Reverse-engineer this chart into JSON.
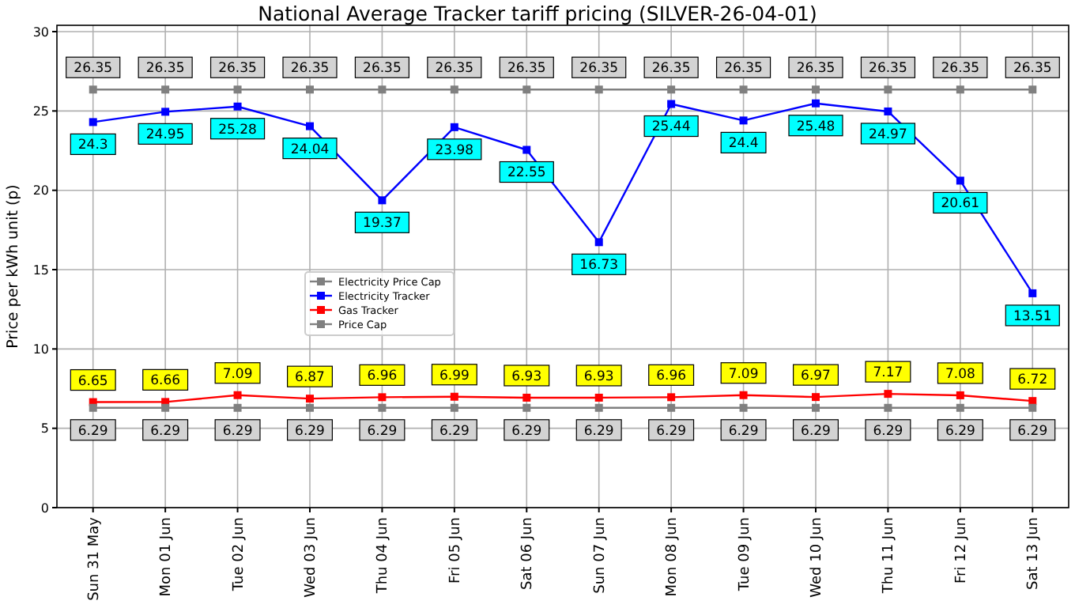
{
  "chart_data": {
    "type": "line",
    "title": "National Average Tracker tariff pricing (SILVER-26-04-01)",
    "ylabel": "Price per kWh unit (p)",
    "categories": [
      "Sun 31 May",
      "Mon 01 Jun",
      "Tue 02 Jun",
      "Wed 03 Jun",
      "Thu 04 Jun",
      "Fri 05 Jun",
      "Sat 06 Jun",
      "Sun 07 Jun",
      "Mon 08 Jun",
      "Tue 09 Jun",
      "Wed 10 Jun",
      "Thu 11 Jun",
      "Fri 12 Jun",
      "Sat 13 Jun"
    ],
    "series": [
      {
        "name": "Electricity Price Cap",
        "color": "#808080",
        "values": [
          26.35,
          26.35,
          26.35,
          26.35,
          26.35,
          26.35,
          26.35,
          26.35,
          26.35,
          26.35,
          26.35,
          26.35,
          26.35,
          26.35
        ]
      },
      {
        "name": "Electricity Tracker",
        "color": "#0000ff",
        "values": [
          24.3,
          24.95,
          25.28,
          24.04,
          19.37,
          23.98,
          22.55,
          16.73,
          25.44,
          24.4,
          25.48,
          24.97,
          20.61,
          13.51
        ]
      },
      {
        "name": "Gas Tracker",
        "color": "#ff0000",
        "values": [
          6.65,
          6.66,
          7.09,
          6.87,
          6.96,
          6.99,
          6.93,
          6.93,
          6.96,
          7.09,
          6.97,
          7.17,
          7.08,
          6.72
        ]
      },
      {
        "name": "Price Cap",
        "color": "#808080",
        "values": [
          6.29,
          6.29,
          6.29,
          6.29,
          6.29,
          6.29,
          6.29,
          6.29,
          6.29,
          6.29,
          6.29,
          6.29,
          6.29,
          6.29
        ]
      }
    ],
    "ylim": [
      0,
      30.4
    ],
    "yticks": [
      0,
      5,
      10,
      15,
      20,
      25,
      30
    ],
    "grid": true,
    "legend": "center left",
    "marker": "square",
    "line_style": "solid",
    "data_labels": true
  }
}
